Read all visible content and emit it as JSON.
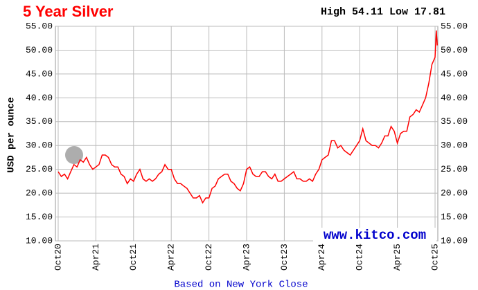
{
  "chart_data": {
    "type": "line",
    "title": "5 Year Silver",
    "subtitle": "High 54.11 Low 17.81",
    "ylabel": "USD per ounce",
    "watermark": "www.kitco.com",
    "footer": "Based on New York Close",
    "xlim": [
      -0.44,
      60.44
    ],
    "ylim": [
      10,
      55
    ],
    "xticks": [
      {
        "value": 0,
        "label": "Oct20"
      },
      {
        "value": 6,
        "label": "Apr21"
      },
      {
        "value": 12,
        "label": "Oct21"
      },
      {
        "value": 18,
        "label": "Apr22"
      },
      {
        "value": 24,
        "label": "Oct22"
      },
      {
        "value": 30,
        "label": "Apr23"
      },
      {
        "value": 36,
        "label": "Oct23"
      },
      {
        "value": 42,
        "label": "Apr24"
      },
      {
        "value": 48,
        "label": "Oct24"
      },
      {
        "value": 54,
        "label": "Apr25"
      },
      {
        "value": 60,
        "label": "Oct25"
      }
    ],
    "yticks": [
      {
        "value": 10,
        "label": "10.00"
      },
      {
        "value": 15,
        "label": "15.00"
      },
      {
        "value": 20,
        "label": "20.00"
      },
      {
        "value": 25,
        "label": "25.00"
      },
      {
        "value": 30,
        "label": "30.00"
      },
      {
        "value": 35,
        "label": "35.00"
      },
      {
        "value": 40,
        "label": "40.00"
      },
      {
        "value": 45,
        "label": "45.00"
      },
      {
        "value": 50,
        "label": "50.00"
      },
      {
        "value": 55,
        "label": "55.00"
      }
    ],
    "grid": true,
    "x": [
      0,
      0.5,
      1,
      1.5,
      2,
      2.5,
      3,
      3.5,
      4,
      4.5,
      5,
      5.5,
      6,
      6.5,
      7,
      7.5,
      8,
      8.5,
      9,
      9.5,
      10,
      10.5,
      11,
      11.5,
      12,
      12.5,
      13,
      13.5,
      14,
      14.5,
      15,
      15.5,
      16,
      16.5,
      17,
      17.5,
      18,
      18.5,
      19,
      19.5,
      20,
      20.5,
      21,
      21.5,
      22,
      22.5,
      23,
      23.5,
      24,
      24.5,
      25,
      25.5,
      26,
      26.5,
      27,
      27.5,
      28,
      28.5,
      29,
      29.5,
      30,
      30.5,
      31,
      31.5,
      32,
      32.5,
      33,
      33.5,
      34,
      34.5,
      35,
      35.5,
      36,
      36.5,
      37,
      37.5,
      38,
      38.5,
      39,
      39.5,
      40,
      40.5,
      41,
      41.5,
      42,
      42.5,
      43,
      43.5,
      44,
      44.5,
      45,
      45.5,
      46,
      46.5,
      47,
      47.5,
      48,
      48.5,
      49,
      49.5,
      50,
      50.5,
      51,
      51.5,
      52,
      52.5,
      53,
      53.5,
      54,
      54.5,
      55,
      55.5,
      56,
      56.5,
      57,
      57.5,
      58,
      58.5,
      59,
      59.5,
      60,
      60.2,
      60.35
    ],
    "series": [
      {
        "color": "#ff0000",
        "values": [
          24.5,
          23.5,
          24,
          23,
          24.5,
          26,
          25.5,
          27,
          26.5,
          27.5,
          26,
          25,
          25.5,
          26,
          28,
          28,
          27.5,
          26,
          25.5,
          25.5,
          24,
          23.5,
          22,
          23,
          22.5,
          24,
          25,
          23,
          22.5,
          23,
          22.5,
          23,
          24,
          24.5,
          26,
          25,
          25,
          23,
          22,
          22,
          21.5,
          21,
          20,
          19,
          19,
          19.5,
          18,
          19,
          19,
          21,
          21.5,
          23,
          23.5,
          24,
          24,
          22.5,
          22,
          21,
          20.5,
          22,
          25,
          25.5,
          24,
          23.5,
          23.5,
          24.5,
          24.5,
          23.5,
          23,
          24,
          22.5,
          22.5,
          23,
          23.5,
          24,
          24.5,
          23,
          23,
          22.5,
          22.5,
          23,
          22.5,
          24,
          25,
          27,
          27.5,
          28,
          31,
          31,
          29.5,
          30,
          29,
          28.5,
          28,
          29,
          30,
          31,
          33.5,
          31,
          30.5,
          30,
          30,
          29.5,
          30.5,
          32,
          32,
          34,
          33,
          30.5,
          32.5,
          33,
          33,
          36,
          36.5,
          37.5,
          37,
          38.5,
          40,
          43,
          47,
          48.5,
          54.1,
          51
        ]
      }
    ]
  }
}
